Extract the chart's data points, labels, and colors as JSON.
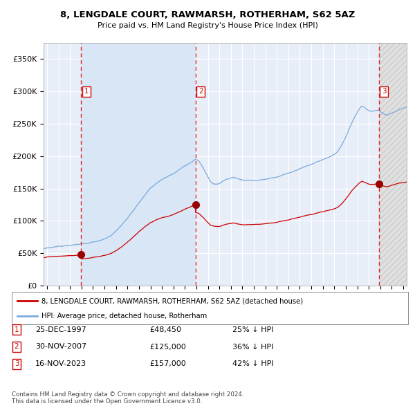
{
  "title": "8, LENGDALE COURT, RAWMARSH, ROTHERHAM, S62 5AZ",
  "subtitle": "Price paid vs. HM Land Registry's House Price Index (HPI)",
  "ylim": [
    0,
    375000
  ],
  "yticks": [
    0,
    50000,
    100000,
    150000,
    200000,
    250000,
    300000,
    350000
  ],
  "ytick_labels": [
    "£0",
    "£50K",
    "£100K",
    "£150K",
    "£200K",
    "£250K",
    "£300K",
    "£350K"
  ],
  "xlim_start": 1994.7,
  "xlim_end": 2026.3,
  "xtick_years": [
    1995,
    1996,
    1997,
    1998,
    1999,
    2000,
    2001,
    2002,
    2003,
    2004,
    2005,
    2006,
    2007,
    2008,
    2009,
    2010,
    2011,
    2012,
    2013,
    2014,
    2015,
    2016,
    2017,
    2018,
    2019,
    2020,
    2021,
    2022,
    2023,
    2024,
    2025,
    2026
  ],
  "sale_dates": [
    1997.98,
    2007.92,
    2023.88
  ],
  "sale_prices": [
    48450,
    125000,
    157000
  ],
  "sale_labels": [
    "1",
    "2",
    "3"
  ],
  "legend_red": "8, LENGDALE COURT, RAWMARSH, ROTHERHAM, S62 5AZ (detached house)",
  "legend_blue": "HPI: Average price, detached house, Rotherham",
  "table_rows": [
    [
      "1",
      "25-DEC-1997",
      "£48,450",
      "25% ↓ HPI"
    ],
    [
      "2",
      "30-NOV-2007",
      "£125,000",
      "36% ↓ HPI"
    ],
    [
      "3",
      "16-NOV-2023",
      "£157,000",
      "42% ↓ HPI"
    ]
  ],
  "footnote": "Contains HM Land Registry data © Crown copyright and database right 2024.\nThis data is licensed under the Open Government Licence v3.0.",
  "bg_color": "#e8eef8",
  "grid_color": "#ffffff",
  "red_line_color": "#cc0000",
  "blue_line_color": "#7aaadd",
  "sale_dot_color": "#990000",
  "vline_color": "#dd2222",
  "box_color": "#cc0000",
  "shade1_color": "#d8e6f5",
  "hatch_fg": "#cccccc",
  "hatch_bg": "#e0e0e0"
}
